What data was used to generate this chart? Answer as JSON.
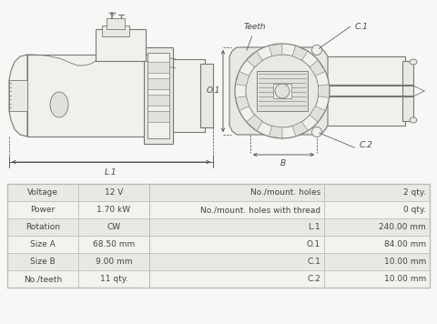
{
  "bg_color": "#f7f7f5",
  "table_bg_odd": "#e8e8e4",
  "table_bg_even": "#f2f2ef",
  "table_border": "#bbbbbb",
  "text_color": "#444444",
  "line_color": "#999999",
  "draw_color": "#777777",
  "table_data": {
    "left_labels": [
      "Voltage",
      "Power",
      "Rotation",
      "Size A",
      "Size B",
      "No./teeth"
    ],
    "left_values": [
      "12 V",
      "1.70 kW",
      "CW",
      "68.50 mm",
      "9.00 mm",
      "11 qty."
    ],
    "right_labels": [
      "No./mount. holes",
      "No./mount. holes with thread",
      "L.1",
      "O.1",
      "C.1",
      "C.2"
    ],
    "right_values": [
      "2 qty.",
      "0 qty.",
      "240.00 mm",
      "84.00 mm",
      "10.00 mm",
      "10.00 mm"
    ]
  }
}
